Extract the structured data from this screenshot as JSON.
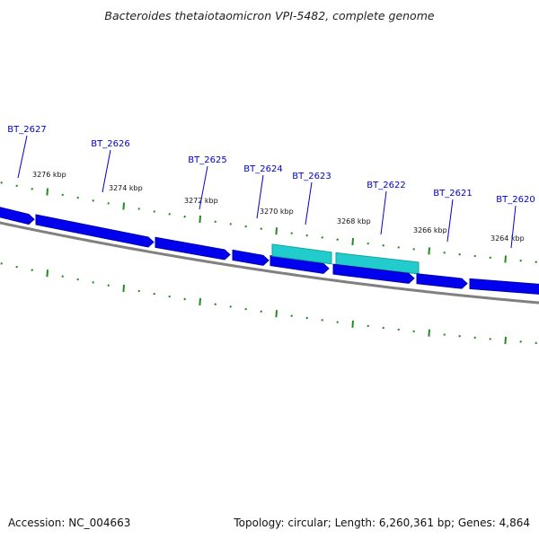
{
  "title": "Bacteroides thetaiotaomicron VPI-5482, complete genome",
  "accession": "Accession: NC_004663",
  "topology": "Topology: circular; Length: 6,260,361 bp; Genes: 4,864",
  "colors": {
    "gene": "#0000ee",
    "gene_highlight": "#22cccc",
    "label": "#0000cc",
    "tick": "#228b22",
    "backbone": "#808080"
  },
  "kbp_labels": [
    "3276 kbp",
    "3274 kbp",
    "3272 kbp",
    "3270 kbp",
    "3268 kbp",
    "3266 kbp",
    "3264 kbp"
  ],
  "genes": [
    {
      "label": "",
      "highlight": false
    },
    {
      "label": "BT_2627",
      "highlight": false
    },
    {
      "label": "BT_2626",
      "highlight": false
    },
    {
      "label": "BT_2625",
      "highlight": false
    },
    {
      "label": "BT_2624",
      "highlight": false
    },
    {
      "label": "BT_2623",
      "highlight": true
    },
    {
      "label": "BT_2622",
      "highlight": true
    },
    {
      "label": "BT_2621",
      "highlight": false
    },
    {
      "label": "BT_2620",
      "highlight": false
    }
  ]
}
